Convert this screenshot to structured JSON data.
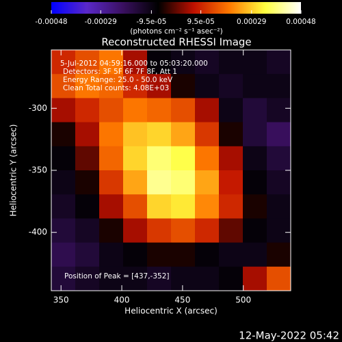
{
  "chart_data": {
    "type": "heatmap",
    "title": "Reconstructed RHESSI Image",
    "x_label": "Heliocentric X (arcsec)",
    "y_label": "Heliocentric Y (arcsec)",
    "colorbar_label": "(photons cm⁻² s⁻¹ asec⁻²)",
    "clim": [
      -0.00048,
      0.00048
    ],
    "cticks": [
      -0.00048,
      -0.00029,
      {
        "value": -9.5e-05,
        "label": "-9.5e-05"
      },
      {
        "value": 9.5e-05,
        "label": "9.5e-05"
      },
      0.00029,
      0.00048
    ],
    "colormap": [
      "#0000ff",
      "#5a28c8",
      "#3a1060",
      "#000000",
      "#c01000",
      "#ff7a00",
      "#ffff40",
      "#ffffff"
    ],
    "xlim": [
      342,
      539
    ],
    "ylim": [
      -447,
      -253
    ],
    "xticks": [
      350,
      400,
      450,
      500
    ],
    "yticks": [
      -300,
      -350,
      -400
    ],
    "annotations": [
      "5-Jul-2012 04:59:16.000 to 05:03:20.000",
      "Detectors: 3F 5F 6F 7F 8F, Att 1",
      "Energy Range: 25.0 - 50.0 keV",
      "Clean     Total counts: 4.08E+03"
    ],
    "peak_label": "Position of Peak = [437,-352]",
    "footer": "12-May-2022 05:42",
    "z": [
      [
        0.0001,
        0.00015,
        0.0002,
        5e-05,
        -8e-05,
        -0.0001,
        -0.00012,
        -0.0001,
        -0.0001,
        -0.00012
      ],
      [
        0.00015,
        0.0002,
        0.00018,
        0.0001,
        5e-05,
        -5e-05,
        -0.0001,
        -0.00012,
        -0.0001,
        -0.0001
      ],
      [
        5e-05,
        0.0001,
        0.00015,
        0.0002,
        0.00018,
        0.00015,
        5e-05,
        -0.0001,
        -0.00015,
        -0.00012
      ],
      [
        -5e-05,
        5e-05,
        0.0002,
        0.00028,
        0.0003,
        0.00025,
        0.00012,
        -5e-05,
        -0.00015,
        -0.0002
      ],
      [
        -8e-05,
        0,
        0.00018,
        0.0003,
        0.00038,
        0.00035,
        0.0002,
        5e-05,
        -0.0001,
        -0.00015
      ],
      [
        -0.0001,
        -5e-05,
        0.00012,
        0.00025,
        0.0004,
        0.00038,
        0.00025,
        8e-05,
        -8e-05,
        -0.00012
      ],
      [
        -0.00012,
        -8e-05,
        5e-05,
        0.00015,
        0.0003,
        0.00032,
        0.00022,
        0.0001,
        -5e-05,
        -0.0001
      ],
      [
        -0.00015,
        -0.00012,
        -5e-05,
        5e-05,
        0.00012,
        0.00015,
        0.0001,
        0,
        -8e-05,
        -0.0001
      ],
      [
        -0.00018,
        -0.00015,
        -0.0001,
        -8e-05,
        -5e-05,
        -5e-05,
        -8e-05,
        -0.0001,
        -0.0001,
        -5e-05
      ],
      [
        -0.00015,
        -0.00012,
        -0.0001,
        -0.0001,
        -0.00012,
        -0.0001,
        -0.0001,
        -8e-05,
        5e-05,
        0.00015
      ]
    ]
  }
}
